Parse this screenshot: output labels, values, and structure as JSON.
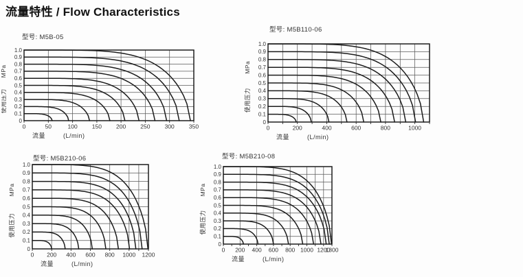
{
  "page": {
    "title": "流量特性 / Flow Characteristics"
  },
  "chart_data": [
    {
      "type": "line",
      "model_label": "型号: M5B-05",
      "xlabel": "流量",
      "xlabel_unit": "(L/min)",
      "ylabel": "使用压力",
      "ylabel_unit": "MPa",
      "xlim": [
        0,
        350
      ],
      "ylim": [
        0,
        1.0
      ],
      "grid": true,
      "legend": "none",
      "x_ticks": [
        0,
        50,
        100,
        150,
        200,
        250,
        300,
        350
      ],
      "x_gridlines": [
        50,
        100,
        150,
        200,
        250,
        300
      ],
      "x_minor_ticks": [
        0,
        50,
        100,
        150,
        200,
        250,
        300,
        350
      ],
      "y_ticks": [
        0,
        0.1,
        0.2,
        0.3,
        0.4,
        0.5,
        0.6,
        0.7,
        0.8,
        0.9,
        1.0
      ],
      "series": [
        {
          "name": "1.0 MPa",
          "start_pressure_mpa": 1.0,
          "max_flow_l_min": 343
        },
        {
          "name": "0.9 MPa",
          "start_pressure_mpa": 0.9,
          "max_flow_l_min": 320
        },
        {
          "name": "0.8 MPa",
          "start_pressure_mpa": 0.8,
          "max_flow_l_min": 294
        },
        {
          "name": "0.7 MPa",
          "start_pressure_mpa": 0.7,
          "max_flow_l_min": 270
        },
        {
          "name": "0.6 MPa",
          "start_pressure_mpa": 0.6,
          "max_flow_l_min": 237
        },
        {
          "name": "0.5 MPa",
          "start_pressure_mpa": 0.5,
          "max_flow_l_min": 208
        },
        {
          "name": "0.4 MPa",
          "start_pressure_mpa": 0.4,
          "max_flow_l_min": 177
        },
        {
          "name": "0.3 MPa",
          "start_pressure_mpa": 0.3,
          "max_flow_l_min": 135
        },
        {
          "name": "0.2 MPa",
          "start_pressure_mpa": 0.2,
          "max_flow_l_min": 92
        },
        {
          "name": "0.1 MPa",
          "start_pressure_mpa": 0.1,
          "max_flow_l_min": 58
        }
      ]
    },
    {
      "type": "line",
      "model_label": "型号: M5B110-06",
      "xlabel": "流量",
      "xlabel_unit": "(L/min)",
      "ylabel": "使用压力",
      "ylabel_unit": "MPa",
      "xlim": [
        0,
        1100
      ],
      "ylim": [
        0,
        1.0
      ],
      "grid": true,
      "legend": "none",
      "x_ticks": [
        0,
        200,
        400,
        600,
        800,
        1000
      ],
      "x_gridlines": [
        100,
        200,
        300,
        400,
        500,
        600,
        700,
        800,
        900,
        1000
      ],
      "x_minor_ticks": [
        0,
        100,
        200,
        300,
        400,
        500,
        600,
        700,
        800,
        900,
        1000,
        1100
      ],
      "y_ticks": [
        0,
        0.1,
        0.2,
        0.3,
        0.4,
        0.5,
        0.6,
        0.7,
        0.8,
        0.9,
        1.0
      ],
      "series": [
        {
          "name": "1.0 MPa",
          "start_pressure_mpa": 1.0,
          "max_flow_l_min": 1060
        },
        {
          "name": "0.9 MPa",
          "start_pressure_mpa": 0.9,
          "max_flow_l_min": 1005
        },
        {
          "name": "0.8 MPa",
          "start_pressure_mpa": 0.8,
          "max_flow_l_min": 938
        },
        {
          "name": "0.7 MPa",
          "start_pressure_mpa": 0.7,
          "max_flow_l_min": 862
        },
        {
          "name": "0.6 MPa",
          "start_pressure_mpa": 0.6,
          "max_flow_l_min": 768
        },
        {
          "name": "0.5 MPa",
          "start_pressure_mpa": 0.5,
          "max_flow_l_min": 652
        },
        {
          "name": "0.4 MPa",
          "start_pressure_mpa": 0.4,
          "max_flow_l_min": 538
        },
        {
          "name": "0.3 MPa",
          "start_pressure_mpa": 0.3,
          "max_flow_l_min": 415
        },
        {
          "name": "0.2 MPa",
          "start_pressure_mpa": 0.2,
          "max_flow_l_min": 295
        },
        {
          "name": "0.1 MPa",
          "start_pressure_mpa": 0.1,
          "max_flow_l_min": 192
        }
      ]
    },
    {
      "type": "line",
      "model_label": "型号: M5B210-06",
      "xlabel": "流量",
      "xlabel_unit": "(L/min)",
      "ylabel": "使用压力",
      "ylabel_unit": "MPa",
      "xlim": [
        0,
        1200
      ],
      "ylim": [
        0,
        1.0
      ],
      "grid": true,
      "legend": "none",
      "x_ticks": [
        0,
        200,
        400,
        600,
        800,
        1000,
        1200
      ],
      "x_gridlines": [
        200,
        400,
        600,
        800,
        1000,
        1100
      ],
      "x_minor_ticks": [
        0,
        200,
        400,
        600,
        800,
        1000,
        1100,
        1200
      ],
      "y_ticks": [
        0,
        0.1,
        0.2,
        0.3,
        0.4,
        0.5,
        0.6,
        0.7,
        0.8,
        0.9,
        1.0
      ],
      "series": [
        {
          "name": "1.0 MPa",
          "start_pressure_mpa": 1.0,
          "max_flow_l_min": 1195
        },
        {
          "name": "0.9 MPa",
          "start_pressure_mpa": 0.9,
          "max_flow_l_min": 1135
        },
        {
          "name": "0.8 MPa",
          "start_pressure_mpa": 0.8,
          "max_flow_l_min": 1070
        },
        {
          "name": "0.7 MPa",
          "start_pressure_mpa": 0.7,
          "max_flow_l_min": 1005
        },
        {
          "name": "0.6 MPa",
          "start_pressure_mpa": 0.6,
          "max_flow_l_min": 890
        },
        {
          "name": "0.5 MPa",
          "start_pressure_mpa": 0.5,
          "max_flow_l_min": 760
        },
        {
          "name": "0.4 MPa",
          "start_pressure_mpa": 0.4,
          "max_flow_l_min": 620
        },
        {
          "name": "0.3 MPa",
          "start_pressure_mpa": 0.3,
          "max_flow_l_min": 480
        },
        {
          "name": "0.2 MPa",
          "start_pressure_mpa": 0.2,
          "max_flow_l_min": 340
        },
        {
          "name": "0.1 MPa",
          "start_pressure_mpa": 0.1,
          "max_flow_l_min": 200
        }
      ]
    },
    {
      "type": "line",
      "model_label": "型号: M5B210-08",
      "xlabel": "流量",
      "xlabel_unit": "(L/min)",
      "ylabel": "使用压力",
      "ylabel_unit": "MPa",
      "xlim": [
        0,
        1300
      ],
      "ylim": [
        0,
        1.0
      ],
      "grid": true,
      "legend": "none",
      "x_ticks": [
        0,
        200,
        400,
        600,
        800,
        1000,
        1200,
        1300
      ],
      "x_gridlines": [
        200,
        400,
        600,
        800,
        1000,
        1100,
        1200
      ],
      "x_minor_ticks": [
        0,
        100,
        200,
        300,
        400,
        500,
        600,
        700,
        800,
        900,
        1000,
        1100,
        1200,
        1300
      ],
      "y_ticks": [
        0,
        0.1,
        0.2,
        0.3,
        0.4,
        0.5,
        0.6,
        0.7,
        0.8,
        0.9,
        1.0
      ],
      "series": [
        {
          "name": "1.0 MPa",
          "start_pressure_mpa": 1.0,
          "max_flow_l_min": 1295
        },
        {
          "name": "0.9 MPa",
          "start_pressure_mpa": 0.9,
          "max_flow_l_min": 1268
        },
        {
          "name": "0.8 MPa",
          "start_pressure_mpa": 0.8,
          "max_flow_l_min": 1232
        },
        {
          "name": "0.7 MPa",
          "start_pressure_mpa": 0.7,
          "max_flow_l_min": 1168
        },
        {
          "name": "0.6 MPa",
          "start_pressure_mpa": 0.6,
          "max_flow_l_min": 1080
        },
        {
          "name": "0.5 MPa",
          "start_pressure_mpa": 0.5,
          "max_flow_l_min": 950
        },
        {
          "name": "0.4 MPa",
          "start_pressure_mpa": 0.4,
          "max_flow_l_min": 780
        },
        {
          "name": "0.3 MPa",
          "start_pressure_mpa": 0.3,
          "max_flow_l_min": 600
        },
        {
          "name": "0.2 MPa",
          "start_pressure_mpa": 0.2,
          "max_flow_l_min": 415
        },
        {
          "name": "0.1 MPa",
          "start_pressure_mpa": 0.1,
          "max_flow_l_min": 240
        }
      ]
    }
  ]
}
